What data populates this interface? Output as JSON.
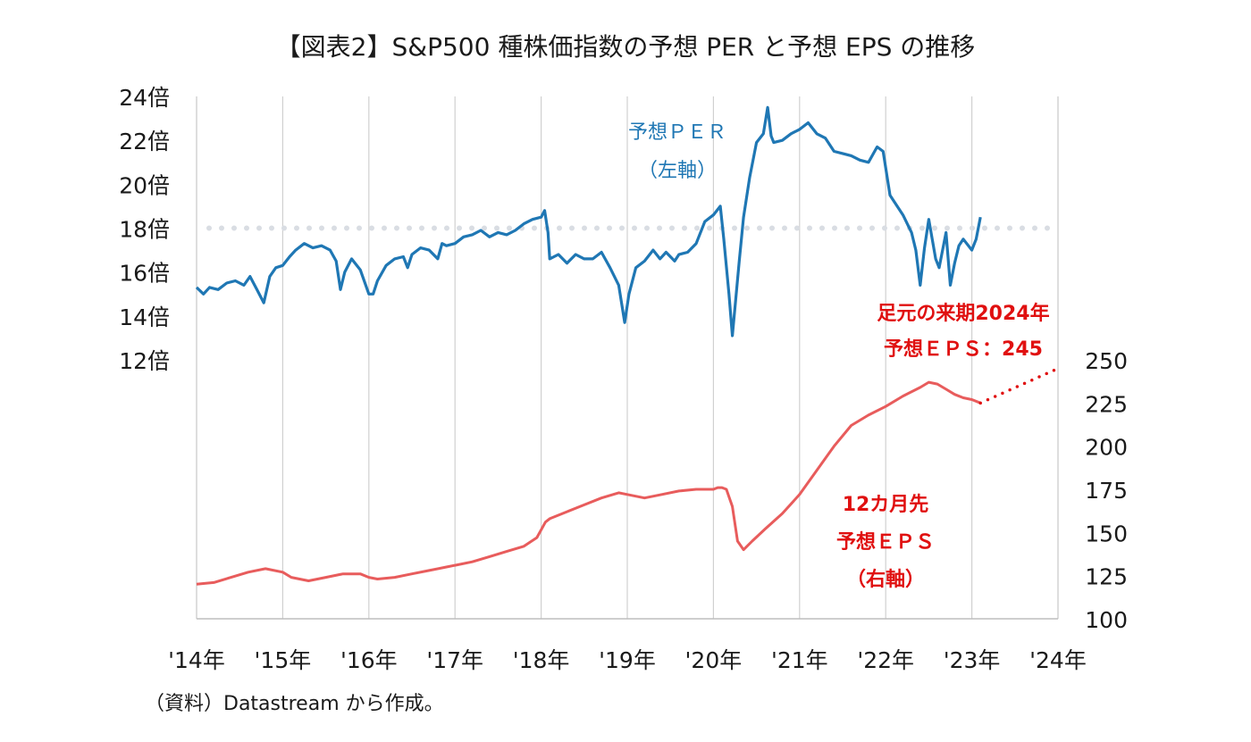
{
  "title": "【図表2】S&P500 種株価指数の予想 PER と予想 EPS の推移",
  "source": "（資料）Datastream から作成。",
  "colors": {
    "per": "#1f77b4",
    "eps": "#e85c5c",
    "forecast": "#e01010",
    "ref": "#d9dde3",
    "grid": "#d0d0d0"
  },
  "chart_data": {
    "type": "line",
    "title": "【図表2】S&P500 種株価指数の予想 PER と予想 EPS の推移",
    "x_ticks": [
      "'14年",
      "'15年",
      "'16年",
      "'17年",
      "'18年",
      "'19年",
      "'20年",
      "'21年",
      "'22年",
      "'23年",
      "'24年"
    ],
    "xlim": [
      2014,
      2024
    ],
    "y_left": {
      "range": [
        12,
        24
      ],
      "ticks": [
        "12倍",
        "14倍",
        "16倍",
        "18倍",
        "20倍",
        "22倍",
        "24倍"
      ]
    },
    "y_right": {
      "range": [
        100,
        250
      ],
      "ticks": [
        "100",
        "125",
        "150",
        "175",
        "200",
        "225",
        "250"
      ]
    },
    "reference_line": {
      "axis": "left",
      "value": 18,
      "style": "dotted"
    },
    "grid": "vertical",
    "series": [
      {
        "name": "予想ＰＥＲ（左軸）",
        "axis": "left",
        "x": [
          2014.0,
          2014.08,
          2014.15,
          2014.25,
          2014.35,
          2014.45,
          2014.55,
          2014.62,
          2014.7,
          2014.78,
          2014.85,
          2014.92,
          2015.0,
          2015.08,
          2015.15,
          2015.25,
          2015.35,
          2015.45,
          2015.55,
          2015.62,
          2015.67,
          2015.72,
          2015.8,
          2015.9,
          2016.0,
          2016.05,
          2016.1,
          2016.2,
          2016.3,
          2016.4,
          2016.45,
          2016.5,
          2016.6,
          2016.7,
          2016.8,
          2016.85,
          2016.9,
          2017.0,
          2017.1,
          2017.2,
          2017.3,
          2017.4,
          2017.5,
          2017.6,
          2017.7,
          2017.8,
          2017.9,
          2018.0,
          2018.04,
          2018.08,
          2018.1,
          2018.2,
          2018.3,
          2018.4,
          2018.5,
          2018.6,
          2018.7,
          2018.8,
          2018.9,
          2018.97,
          2019.02,
          2019.1,
          2019.2,
          2019.3,
          2019.38,
          2019.45,
          2019.55,
          2019.6,
          2019.7,
          2019.8,
          2019.9,
          2020.0,
          2020.08,
          2020.12,
          2020.18,
          2020.22,
          2020.3,
          2020.35,
          2020.42,
          2020.5,
          2020.58,
          2020.63,
          2020.67,
          2020.7,
          2020.8,
          2020.9,
          2021.0,
          2021.1,
          2021.2,
          2021.3,
          2021.4,
          2021.5,
          2021.6,
          2021.7,
          2021.8,
          2021.9,
          2021.97,
          2022.05,
          2022.1,
          2022.2,
          2022.3,
          2022.35,
          2022.4,
          2022.45,
          2022.5,
          2022.58,
          2022.62,
          2022.7,
          2022.75,
          2022.8,
          2022.85,
          2022.9,
          2023.0,
          2023.05,
          2023.1
        ],
        "y": [
          15.3,
          15.0,
          15.3,
          15.2,
          15.5,
          15.6,
          15.4,
          15.8,
          15.2,
          14.6,
          15.8,
          16.2,
          16.3,
          16.7,
          17.0,
          17.3,
          17.1,
          17.2,
          17.0,
          16.5,
          15.2,
          16.0,
          16.6,
          16.1,
          15.0,
          15.0,
          15.6,
          16.3,
          16.6,
          16.7,
          16.2,
          16.8,
          17.1,
          17.0,
          16.6,
          17.3,
          17.2,
          17.3,
          17.6,
          17.7,
          17.9,
          17.6,
          17.8,
          17.7,
          17.9,
          18.2,
          18.4,
          18.5,
          18.8,
          17.8,
          16.6,
          16.8,
          16.4,
          16.8,
          16.6,
          16.6,
          16.9,
          16.2,
          15.4,
          13.7,
          15.0,
          16.2,
          16.5,
          17.0,
          16.6,
          16.9,
          16.5,
          16.8,
          16.9,
          17.3,
          18.3,
          18.6,
          19.0,
          17.5,
          15.0,
          13.1,
          16.5,
          18.5,
          20.3,
          21.9,
          22.3,
          23.5,
          22.2,
          21.9,
          22.0,
          22.3,
          22.5,
          22.8,
          22.3,
          22.1,
          21.5,
          21.4,
          21.3,
          21.1,
          21.0,
          21.7,
          21.5,
          19.5,
          19.2,
          18.6,
          17.8,
          17.0,
          15.4,
          17.1,
          18.4,
          16.6,
          16.2,
          17.8,
          15.4,
          16.4,
          17.2,
          17.5,
          17.0,
          17.5,
          18.5
        ]
      },
      {
        "name": "12カ月先予想ＥＰＳ（右軸）",
        "axis": "right",
        "x": [
          2014.0,
          2014.2,
          2014.4,
          2014.6,
          2014.8,
          2015.0,
          2015.1,
          2015.3,
          2015.5,
          2015.7,
          2015.9,
          2016.0,
          2016.1,
          2016.3,
          2016.5,
          2016.7,
          2016.9,
          2017.0,
          2017.2,
          2017.4,
          2017.6,
          2017.8,
          2017.95,
          2018.05,
          2018.1,
          2018.3,
          2018.5,
          2018.7,
          2018.9,
          2019.0,
          2019.2,
          2019.4,
          2019.6,
          2019.8,
          2020.0,
          2020.05,
          2020.1,
          2020.15,
          2020.22,
          2020.28,
          2020.35,
          2020.45,
          2020.6,
          2020.8,
          2021.0,
          2021.2,
          2021.4,
          2021.6,
          2021.8,
          2022.0,
          2022.2,
          2022.4,
          2022.5,
          2022.6,
          2022.7,
          2022.8,
          2022.9,
          2023.0,
          2023.1
        ],
        "y": [
          120,
          121,
          124,
          127,
          129,
          127,
          124,
          122,
          124,
          126,
          126,
          124,
          123,
          124,
          126,
          128,
          130,
          131,
          133,
          136,
          139,
          142,
          147,
          156,
          158,
          162,
          166,
          170,
          173,
          172,
          170,
          172,
          174,
          175,
          175,
          176,
          176,
          175,
          165,
          145,
          140,
          145,
          152,
          161,
          172,
          186,
          200,
          212,
          218,
          223,
          229,
          234,
          237,
          236,
          233,
          230,
          228,
          227,
          225
        ]
      }
    ],
    "forecast": {
      "x_from": 2023.1,
      "y_from": 225,
      "x_to": 2024.0,
      "y_to": 245,
      "axis": "right",
      "style": "dotted"
    },
    "annotations": {
      "per_label": [
        "予想ＰＥＲ",
        "（左軸）"
      ],
      "eps_label": [
        "12カ月先",
        "予想ＥＰＳ",
        "（右軸）"
      ],
      "forecast_label": [
        "足元の来期2024年",
        "予想ＥＰＳ：245"
      ]
    }
  }
}
